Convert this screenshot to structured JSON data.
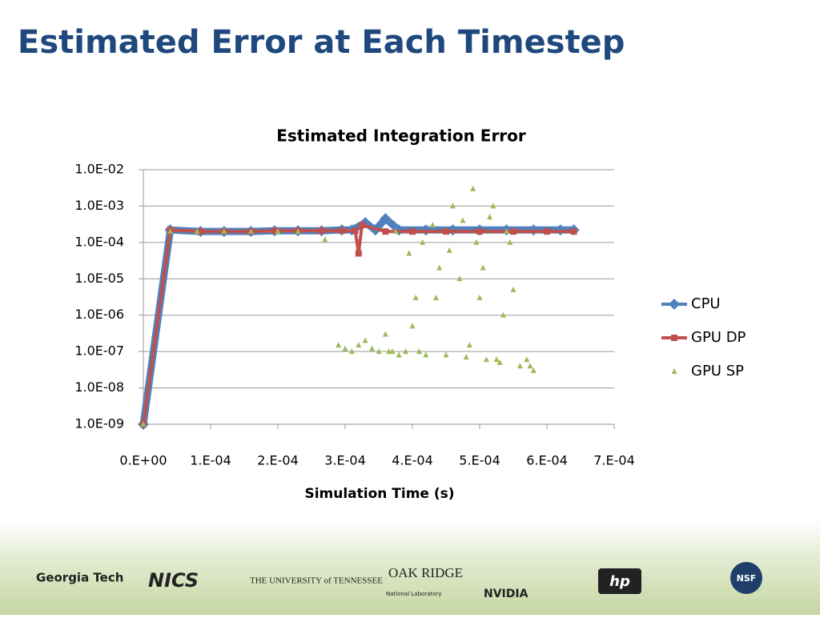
{
  "slide_title": "Estimated Error at Each Timestep",
  "chart_data": {
    "type": "line",
    "title": "Estimated Integration Error",
    "x_label": "Simulation Time (s)",
    "xlim": [
      0,
      0.0007
    ],
    "xticks": [
      {
        "value": 0,
        "label": "0.E+00"
      },
      {
        "value": 0.0001,
        "label": "1.E-04"
      },
      {
        "value": 0.0002,
        "label": "2.E-04"
      },
      {
        "value": 0.0003,
        "label": "3.E-04"
      },
      {
        "value": 0.0004,
        "label": "4.E-04"
      },
      {
        "value": 0.0005,
        "label": "5.E-04"
      },
      {
        "value": 0.0006,
        "label": "6.E-04"
      },
      {
        "value": 0.0007,
        "label": "7.E-04"
      }
    ],
    "ylim": [
      1e-09,
      0.01
    ],
    "ylog": true,
    "yticks": [
      {
        "value": 1e-09,
        "label": "1.0E-09"
      },
      {
        "value": 1e-08,
        "label": "1.0E-08"
      },
      {
        "value": 1e-07,
        "label": "1.0E-07"
      },
      {
        "value": 1e-06,
        "label": "1.0E-06"
      },
      {
        "value": 1e-05,
        "label": "1.0E-05"
      },
      {
        "value": 0.0001,
        "label": "1.0E-04"
      },
      {
        "value": 0.001,
        "label": "1.0E-03"
      },
      {
        "value": 0.01,
        "label": "1.0E-02"
      }
    ],
    "grid": true,
    "legend": "right",
    "series": [
      {
        "name": "CPU",
        "color": "#4f81bd",
        "marker": "diamond",
        "line": true,
        "x": [
          0,
          4e-05,
          8.5e-05,
          0.00012,
          0.00016,
          0.000195,
          0.00023,
          0.000265,
          0.000295,
          0.00031,
          0.00033,
          0.000345,
          0.00036,
          0.00038,
          0.00042,
          0.00046,
          0.0005,
          0.00054,
          0.00058,
          0.00062,
          0.00064
        ],
        "values": [
          1e-09,
          0.00022,
          0.0002,
          0.0002,
          0.0002,
          0.00021,
          0.00021,
          0.00021,
          0.00022,
          0.00022,
          0.00035,
          0.00022,
          0.00045,
          0.00022,
          0.00022,
          0.00022,
          0.00022,
          0.00022,
          0.00022,
          0.00022,
          0.00022
        ]
      },
      {
        "name": "GPU DP",
        "color": "#c0504d",
        "marker": "square",
        "line": true,
        "x": [
          0,
          4e-05,
          8.5e-05,
          0.00012,
          0.00016,
          0.000195,
          0.00023,
          0.000265,
          0.000295,
          0.000315,
          0.00032,
          0.000325,
          0.00036,
          0.0004,
          0.00045,
          0.0005,
          0.00055,
          0.0006,
          0.00064
        ],
        "values": [
          1e-09,
          0.00022,
          0.0002,
          0.0002,
          0.0002,
          0.00021,
          0.00021,
          0.00021,
          0.00021,
          0.00021,
          5e-05,
          0.0003,
          0.0002,
          0.0002,
          0.0002,
          0.0002,
          0.0002,
          0.0002,
          0.0002
        ]
      },
      {
        "name": "GPU SP",
        "color": "#9bbb59",
        "marker": "triangle",
        "line": false,
        "x": [
          0,
          4e-05,
          8e-05,
          0.00012,
          0.00016,
          0.0002,
          0.00023,
          0.00027,
          0.00029,
          0.0003,
          0.00031,
          0.00032,
          0.00033,
          0.00034,
          0.00035,
          0.00036,
          0.00037,
          0.00038,
          0.00039,
          0.0004,
          0.00041,
          0.00042,
          0.00043,
          0.00044,
          0.00045,
          0.00046,
          0.00047,
          0.00048,
          0.00049,
          0.0005,
          0.00051,
          0.00052,
          0.00053,
          0.00054,
          0.00055,
          0.00056,
          0.00057,
          0.00058,
          0.000395,
          0.000405,
          0.000415,
          0.000435,
          0.000455,
          0.000475,
          0.000495,
          0.000505,
          0.000515,
          0.000535,
          0.000545,
          0.000375,
          0.000365,
          0.000485,
          0.000525,
          0.000575
        ],
        "values": [
          1e-09,
          0.0002,
          0.0002,
          0.0002,
          0.0002,
          0.0002,
          0.0002,
          0.00012,
          1.5e-07,
          1.2e-07,
          1e-07,
          1.5e-07,
          2e-07,
          1.2e-07,
          1e-07,
          3e-07,
          1e-07,
          8e-08,
          1e-07,
          5e-07,
          1e-07,
          8e-08,
          0.0003,
          2e-05,
          8e-08,
          0.001,
          1e-05,
          7e-08,
          0.003,
          3e-06,
          6e-08,
          0.001,
          5e-08,
          0.0002,
          5e-06,
          4e-08,
          6e-08,
          3e-08,
          5e-05,
          3e-06,
          0.0001,
          3e-06,
          6e-05,
          0.0004,
          0.0001,
          2e-05,
          0.0005,
          1e-06,
          0.0001,
          0.0002,
          1e-07,
          1.5e-07,
          6e-08,
          4e-08
        ]
      }
    ]
  },
  "logos": [
    "Georgia Tech",
    "NICS",
    "THE UNIVERSITY of TENNESSEE",
    "OAK RIDGE",
    "National Laboratory",
    "NVIDIA",
    "hp",
    "NSF"
  ]
}
